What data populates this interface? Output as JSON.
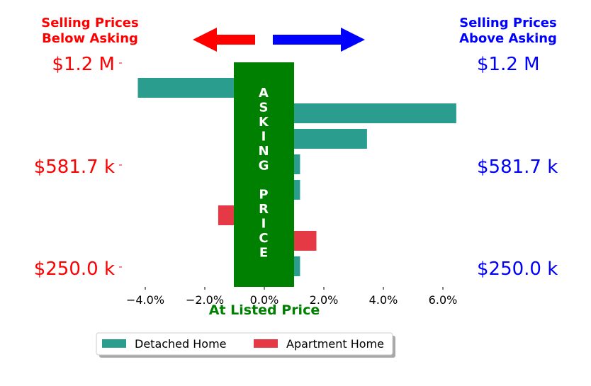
{
  "chart_data": {
    "type": "bar",
    "orientation": "horizontal",
    "header_left": [
      "Selling Prices",
      "Below Asking"
    ],
    "header_right": [
      "Selling Prices",
      "Above Asking"
    ],
    "center_label": "ASKING PRICE",
    "xlabel": "At Listed Price",
    "x_ticks": [
      -4.0,
      -2.0,
      0.0,
      2.0,
      4.0,
      6.0
    ],
    "x_tick_labels": [
      "−4.0%",
      "−2.0%",
      "0.0%",
      "2.0%",
      "4.0%",
      "6.0%"
    ],
    "xlim": [
      -4.6,
      6.5
    ],
    "y_tick_labels_left": [
      "$1.2 M",
      "$581.7 k",
      "$250.0 k"
    ],
    "y_tick_labels_right": [
      "$1.2 M",
      "$581.7 k",
      "$250.0 k"
    ],
    "rows": 8,
    "series": [
      {
        "name": "Detached Home",
        "color": "#2a9d8f",
        "bars": [
          {
            "row": 0,
            "value": -4.25
          },
          {
            "row": 1,
            "value": 6.45
          },
          {
            "row": 2,
            "value": 3.45
          },
          {
            "row": 3,
            "value": 1.2
          },
          {
            "row": 4,
            "value": 1.2
          },
          {
            "row": 7,
            "value": 1.2
          }
        ]
      },
      {
        "name": "Apartment Home",
        "color": "#e63946",
        "bars": [
          {
            "row": 5,
            "value": -1.55
          },
          {
            "row": 6,
            "value": 1.75
          }
        ]
      }
    ],
    "colors": {
      "below": "#ff0000",
      "above": "#0000ff",
      "asking_band": "#008000",
      "xlabel": "#008000"
    },
    "grid": false,
    "legend_position": "bottom-center"
  }
}
